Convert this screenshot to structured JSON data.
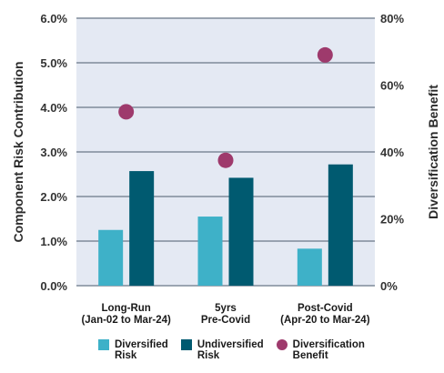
{
  "chart_data": {
    "type": "bar",
    "categories": [
      [
        "Long-Run",
        "(Jan-02 to Mar-24)"
      ],
      [
        "5yrs",
        "Pre-Covid"
      ],
      [
        "Post-Covid",
        "(Apr-20 to Mar-24)"
      ]
    ],
    "series": [
      {
        "name": "Diversified Risk",
        "legend_lines": [
          "Diversified",
          "Risk"
        ],
        "axis": "left",
        "kind": "bar",
        "color": "#3eb1c8",
        "values": [
          1.25,
          1.55,
          0.83
        ]
      },
      {
        "name": "Undiversified Risk",
        "legend_lines": [
          "Undiversified",
          "Risk"
        ],
        "axis": "left",
        "kind": "bar",
        "color": "#005a70",
        "values": [
          2.57,
          2.42,
          2.72
        ]
      },
      {
        "name": "Diversification Benefit",
        "legend_lines": [
          "Diversification",
          "Benefit"
        ],
        "axis": "right",
        "kind": "scatter",
        "color": "#9e3a6c",
        "values": [
          52,
          37.5,
          69
        ]
      }
    ],
    "ylabel": "Component Risk Contribution",
    "y2label": "Diversification Benefit",
    "ylim": [
      0,
      6
    ],
    "y2lim": [
      0,
      80
    ],
    "yticks": [
      "0.0%",
      "1.0%",
      "2.0%",
      "3.0%",
      "4.0%",
      "5.0%",
      "6.0%"
    ],
    "y2ticks": [
      "0%",
      "20%",
      "40%",
      "60%",
      "80%"
    ],
    "grid": true,
    "legend_position": "bottom",
    "plot_background": "#e4e9f3",
    "gridline_color": "#7f8a99"
  }
}
